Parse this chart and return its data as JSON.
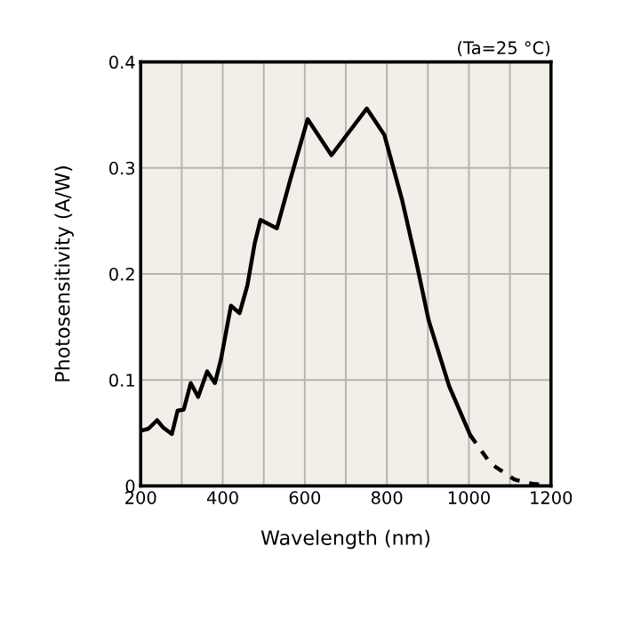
{
  "chart_data": {
    "type": "line",
    "xlabel": "Wavelength (nm)",
    "ylabel": "Photosensitivity (A/W)",
    "annotations": [
      "(Ta=25 °C)"
    ],
    "series": [
      {
        "color": "#000000",
        "line_style": "solid",
        "x": [
          200,
          219,
          240,
          255,
          276,
          290,
          305,
          322,
          340,
          362,
          381,
          396,
          420,
          441,
          460,
          478,
          492,
          532,
          564,
          607,
          665,
          708,
          751,
          794,
          837,
          873,
          902,
          952,
          1003
        ],
        "values": [
          0.052,
          0.054,
          0.062,
          0.055,
          0.049,
          0.071,
          0.072,
          0.097,
          0.084,
          0.108,
          0.097,
          0.12,
          0.17,
          0.163,
          0.189,
          0.229,
          0.251,
          0.243,
          0.288,
          0.346,
          0.312,
          0.334,
          0.356,
          0.331,
          0.27,
          0.209,
          0.156,
          0.094,
          0.048
        ]
      },
      {
        "color": "#000000",
        "line_style": "dashed",
        "x": [
          1003,
          1053,
          1111,
          1154,
          1183
        ],
        "values": [
          0.048,
          0.021,
          0.006,
          0.002,
          0.001
        ]
      }
    ],
    "xlim": [
      200,
      1200
    ],
    "ylim": [
      0,
      0.4
    ],
    "xticks": [
      200,
      {
        "value": 300,
        "label": null
      },
      400,
      {
        "value": 500,
        "label": null
      },
      600,
      {
        "value": 700,
        "label": null
      },
      800,
      {
        "value": 900,
        "label": null
      },
      1000,
      {
        "value": 1100,
        "label": null
      },
      1200
    ],
    "yticks": [
      0,
      0.1,
      0.2,
      0.3,
      0.4
    ],
    "grid": true,
    "marker": "none"
  }
}
